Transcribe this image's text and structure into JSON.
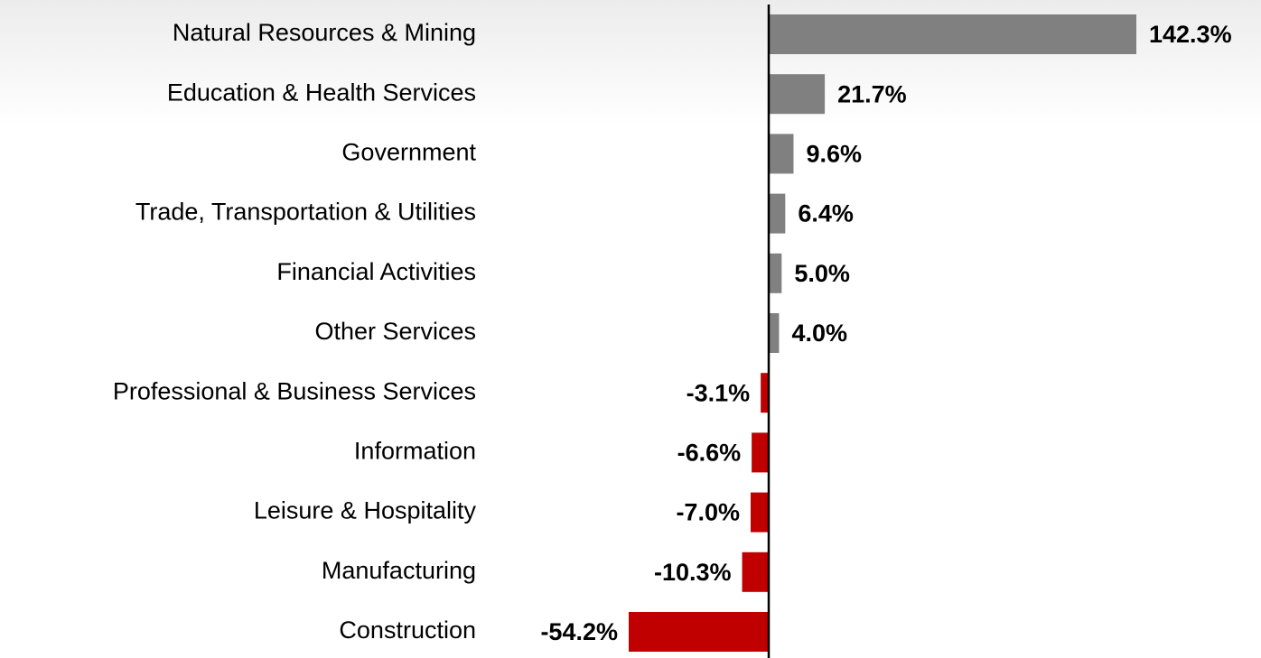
{
  "chart_data": {
    "type": "bar",
    "orientation": "horizontal",
    "categories": [
      "Natural Resources & Mining",
      "Education & Health Services",
      "Government",
      "Trade, Transportation & Utilities",
      "Financial Activities",
      "Other Services",
      "Professional & Business Services",
      "Information",
      "Leisure & Hospitality",
      "Manufacturing",
      "Construction"
    ],
    "values": [
      142.3,
      21.7,
      9.6,
      6.4,
      5.0,
      4.0,
      -3.1,
      -6.6,
      -7.0,
      -10.3,
      -54.2
    ],
    "value_labels": [
      "142.3%",
      "21.7%",
      "9.6%",
      "6.4%",
      "5.0%",
      "4.0%",
      "-3.1%",
      "-6.6%",
      "-7.0%",
      "-10.3%",
      "-54.2%"
    ],
    "colors": [
      "#808080",
      "#808080",
      "#808080",
      "#808080",
      "#808080",
      "#808080",
      "#c00000",
      "#c00000",
      "#c00000",
      "#c00000",
      "#c00000"
    ]
  }
}
